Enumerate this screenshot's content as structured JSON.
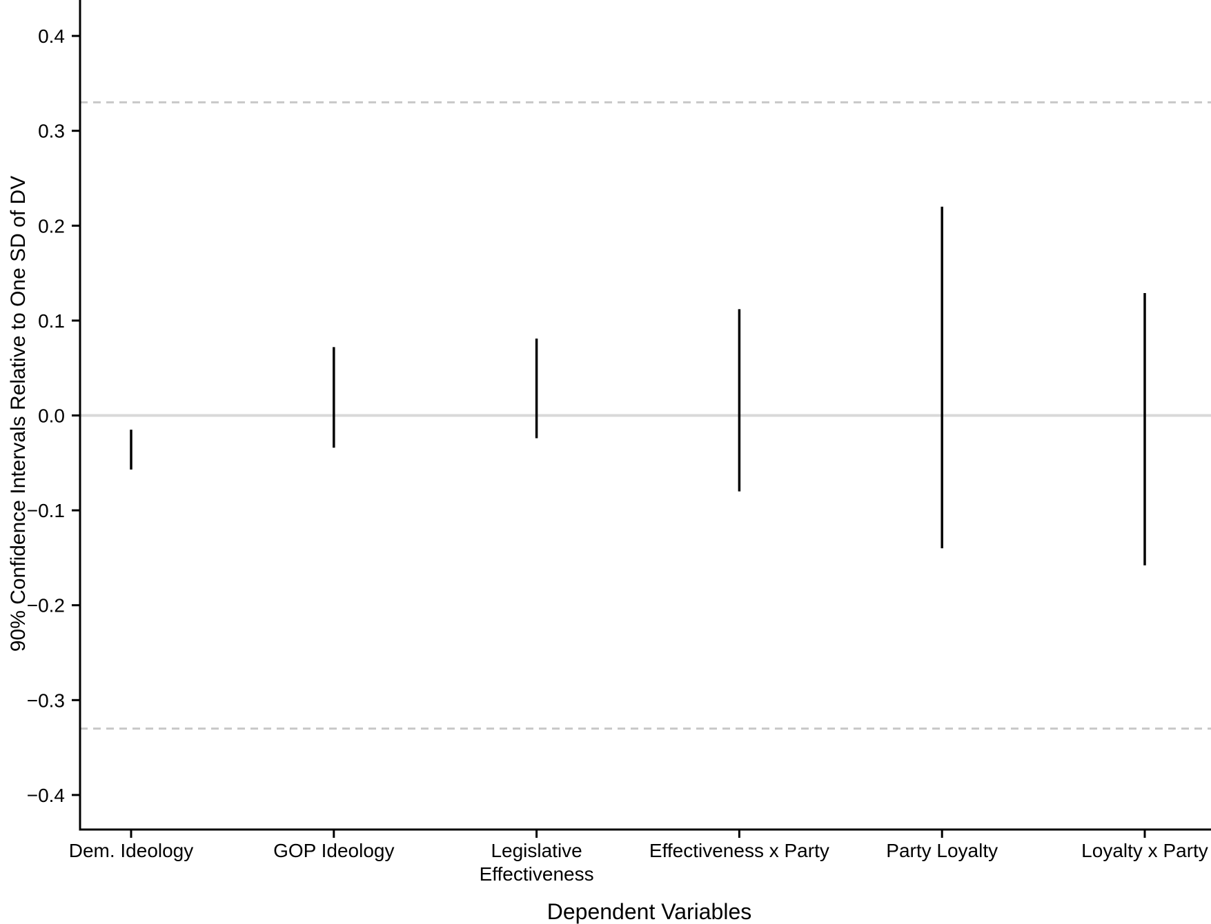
{
  "chart_data": {
    "type": "errorbar",
    "title": "",
    "xlabel": "Dependent Variables",
    "ylabel": "90% Confidence Intervals Relative to One SD of DV",
    "confidence_level": "90%",
    "categories": [
      "Dem. Ideology",
      "GOP Ideology",
      "Legislative Effectiveness",
      "Effectiveness x Party",
      "Party Loyalty",
      "Loyalty x Party"
    ],
    "category_label_lines": [
      [
        "Dem. Ideology"
      ],
      [
        "GOP Ideology"
      ],
      [
        "Legislative",
        "Effectiveness"
      ],
      [
        "Effectiveness x Party"
      ],
      [
        "Party Loyalty"
      ],
      [
        "Loyalty x Party"
      ]
    ],
    "intervals": [
      {
        "category": "Dem. Ideology",
        "low": -0.057,
        "high": -0.015
      },
      {
        "category": "GOP Ideology",
        "low": -0.034,
        "high": 0.072
      },
      {
        "category": "Legislative Effectiveness",
        "low": -0.024,
        "high": 0.081
      },
      {
        "category": "Effectiveness x Party",
        "low": -0.08,
        "high": 0.112
      },
      {
        "category": "Party Loyalty",
        "low": -0.14,
        "high": 0.22
      },
      {
        "category": "Loyalty x Party",
        "low": -0.158,
        "high": 0.129
      }
    ],
    "ylim": [
      -0.44,
      0.44
    ],
    "yticks": [
      {
        "value": 0.4,
        "label": "0.4"
      },
      {
        "value": 0.3,
        "label": "0.3"
      },
      {
        "value": 0.2,
        "label": "0.2"
      },
      {
        "value": 0.1,
        "label": "0.1"
      },
      {
        "value": 0.0,
        "label": "0.0"
      },
      {
        "value": -0.1,
        "label": "−0.1"
      },
      {
        "value": -0.2,
        "label": "−0.2"
      },
      {
        "value": -0.3,
        "label": "−0.3"
      },
      {
        "value": -0.4,
        "label": "−0.4"
      }
    ],
    "reference_lines": {
      "solid": [
        0.0
      ],
      "dashed": [
        0.33,
        -0.33
      ]
    },
    "grid": false,
    "legend": "none",
    "colors": {
      "interval": "#000000",
      "zero_line": "#d9d9d9",
      "dashed_line": "#c8c8c8",
      "axis": "#000000",
      "text": "#000000",
      "background": "#ffffff"
    }
  }
}
